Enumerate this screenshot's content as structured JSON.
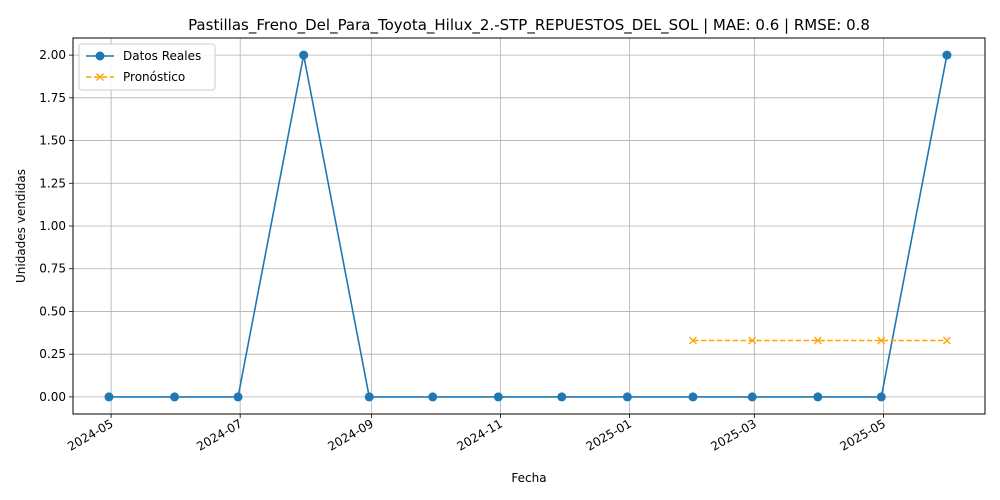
{
  "chart_data": {
    "type": "line",
    "title": "Pastillas_Freno_Del_Para_Toyota_Hilux_2.-STP_REPUESTOS_DEL_SOL | MAE: 0.6 | RMSE: 0.8",
    "xlabel": "Fecha",
    "ylabel": "Unidades vendidas",
    "ylim": [
      -0.1,
      2.1
    ],
    "xlim": [
      "2024-04-13",
      "2025-06-18"
    ],
    "grid": true,
    "legend_position": "upper-left",
    "x_ticks": [
      "2024-05",
      "2024-07",
      "2024-09",
      "2024-11",
      "2025-01",
      "2025-03",
      "2025-05"
    ],
    "y_ticks": [
      "0.00",
      "0.25",
      "0.50",
      "0.75",
      "1.00",
      "1.25",
      "1.50",
      "1.75",
      "2.00"
    ],
    "series": [
      {
        "name": "Datos Reales",
        "color": "#1f77b4",
        "style": "solid",
        "marker": "circle",
        "x": [
          "2024-04-30",
          "2024-05-31",
          "2024-06-30",
          "2024-07-31",
          "2024-08-31",
          "2024-09-30",
          "2024-10-31",
          "2024-11-30",
          "2024-12-31",
          "2025-01-31",
          "2025-02-28",
          "2025-03-31",
          "2025-04-30",
          "2025-05-31"
        ],
        "values": [
          0,
          0,
          0,
          2,
          0,
          0,
          0,
          0,
          0,
          0,
          0,
          0,
          0,
          2
        ]
      },
      {
        "name": "Pronóstico",
        "color": "#ffa500",
        "style": "dashed",
        "marker": "x",
        "x": [
          "2025-01-31",
          "2025-02-28",
          "2025-03-31",
          "2025-04-30",
          "2025-05-31"
        ],
        "values": [
          0.33,
          0.33,
          0.33,
          0.33,
          0.33
        ]
      }
    ]
  }
}
